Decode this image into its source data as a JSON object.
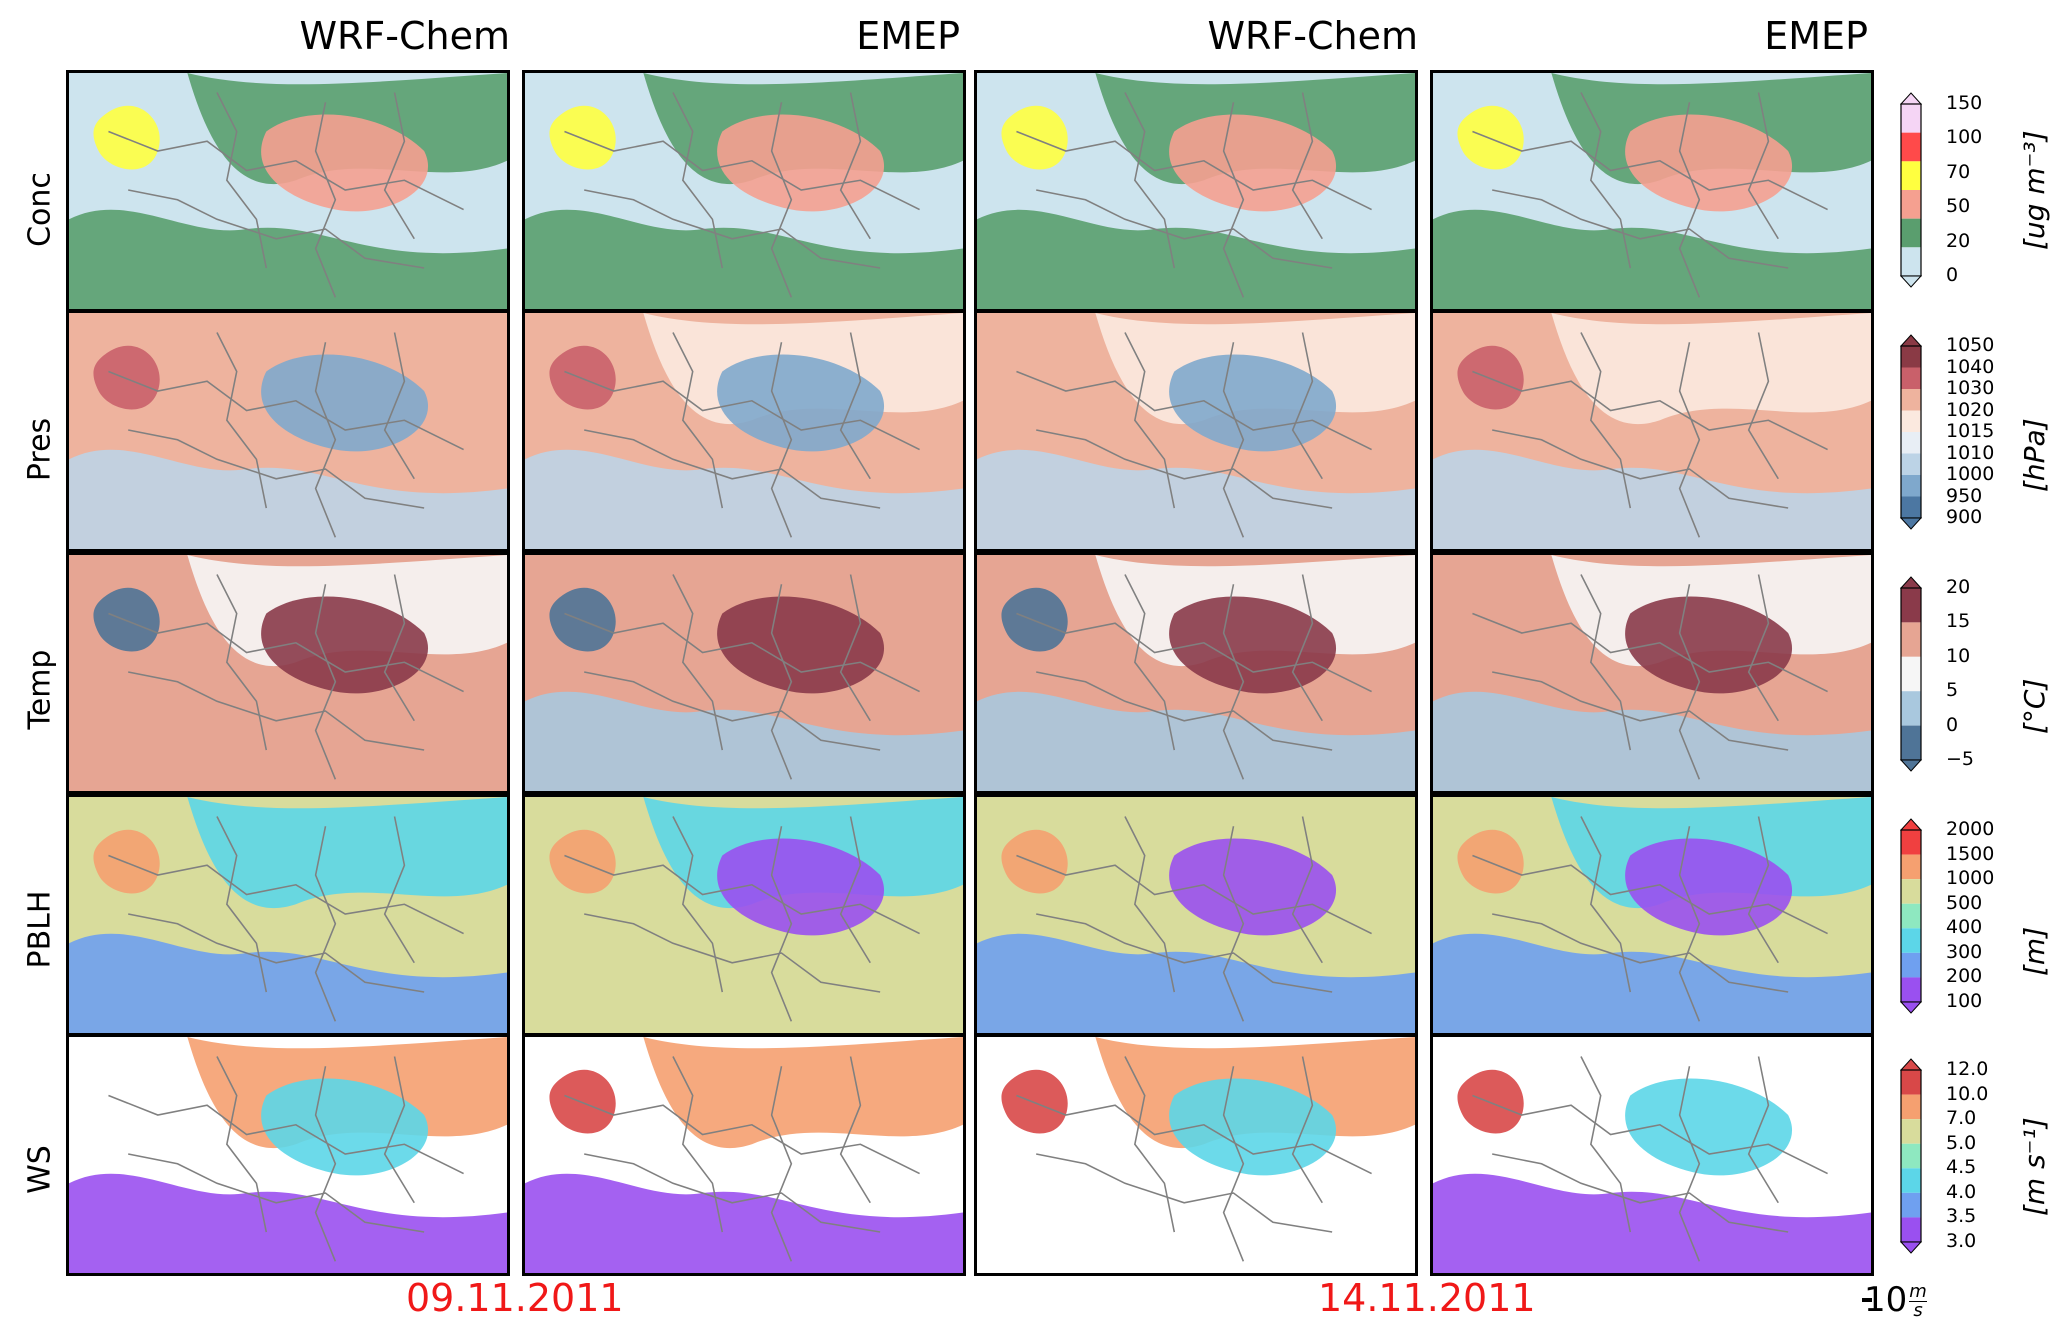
{
  "columns": [
    "WRF-Chem",
    "EMEP",
    "WRF-Chem",
    "EMEP"
  ],
  "rows": [
    "Conc",
    "Pres",
    "Temp",
    "PBLH",
    "WS"
  ],
  "dates": [
    "09.11.2011",
    "14.11.2011"
  ],
  "wind_reference": {
    "value": "10",
    "unit_num": "m",
    "unit_den": "s"
  },
  "colorbars": [
    {
      "id": "conc",
      "unit": "[ug m⁻³]",
      "ticks": [
        "150",
        "100",
        "70",
        "50",
        "20",
        "0"
      ],
      "colors": [
        "#f5d5f5",
        "#ff4a4a",
        "#ffff40",
        "#f5a090",
        "#5a9e6e",
        "#cde4ee"
      ]
    },
    {
      "id": "pres",
      "unit": "[hPa]",
      "ticks": [
        "1050",
        "1040",
        "1030",
        "1020",
        "1015",
        "1010",
        "1000",
        "950",
        "900"
      ],
      "colors": [
        "#8a3a45",
        "#c9606a",
        "#eeb39e",
        "#fbe9df",
        "#e8eef5",
        "#bcd3e6",
        "#7fa8cc",
        "#4c77a2"
      ]
    },
    {
      "id": "temp",
      "unit": "[°C]",
      "ticks": [
        "20",
        "15",
        "10",
        "5",
        "0",
        "−5"
      ],
      "colors": [
        "#8a3a4a",
        "#e6a593",
        "#f6f6f6",
        "#a9c8de",
        "#4f7497"
      ]
    },
    {
      "id": "pblh",
      "unit": "[m]",
      "ticks": [
        "2000",
        "1500",
        "1000",
        "500",
        "400",
        "300",
        "200",
        "100"
      ],
      "colors": [
        "#f04040",
        "#f5a070",
        "#d8dc9c",
        "#8ee8c0",
        "#5cd6e8",
        "#6fa0f0",
        "#9a50f0"
      ]
    },
    {
      "id": "ws",
      "unit": "[m s⁻¹]",
      "ticks": [
        "12.0",
        "10.0",
        "7.0",
        "5.0",
        "4.5",
        "4.0",
        "3.5",
        "3.0"
      ],
      "colors": [
        "#d84848",
        "#f5a070",
        "#d8dc9c",
        "#8ee8c0",
        "#5cd6e8",
        "#6fa0f0",
        "#9a50f0"
      ]
    }
  ]
}
